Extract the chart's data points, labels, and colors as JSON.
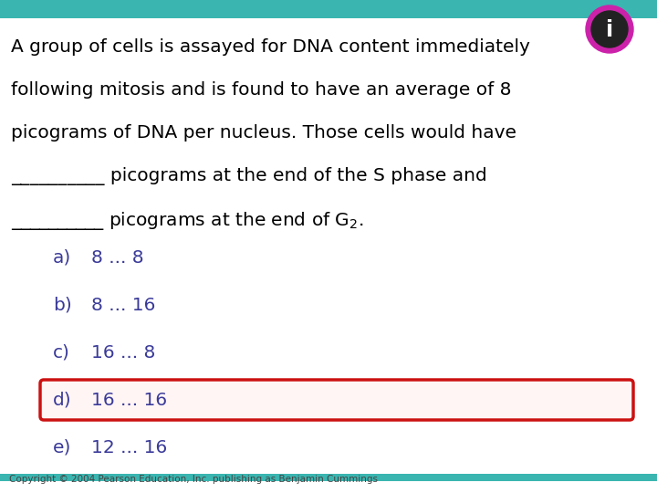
{
  "background_color": "#ffffff",
  "top_bar_color": "#3ab5b0",
  "bottom_bar_color": "#3ab5b0",
  "question_lines": [
    "A group of cells is assayed for DNA content immediately",
    "following mitosis and is found to have an average of 8",
    "picograms of DNA per nucleus. Those cells would have",
    "__________ picograms at the end of the S phase and",
    "__________ picograms at the end of G"
  ],
  "q_line5_sub": "2",
  "q_line5_end": ".",
  "options": [
    {
      "label": "a)",
      "text": "8 ... 8",
      "highlighted": false
    },
    {
      "label": "b)",
      "text": "8 ... 16",
      "highlighted": false
    },
    {
      "label": "c)",
      "text": "16 ... 8",
      "highlighted": false
    },
    {
      "label": "d)",
      "text": "16 ... 16",
      "highlighted": true
    },
    {
      "label": "e)",
      "text": "12 ... 16",
      "highlighted": false
    }
  ],
  "text_color": "#000000",
  "option_color": "#3a3a99",
  "highlight_box_color": "#cc1111",
  "highlight_fill_color": "#fff5f5",
  "copyright_text": "Copyright © 2004 Pearson Education, Inc. publishing as Benjamin Cummings",
  "font_size_question": 14.5,
  "font_size_option": 14.5,
  "font_size_copyright": 7.5,
  "icon_outer_color": "#222222",
  "icon_magenta_color": "#cc22aa",
  "icon_inner_color": "#ffffff"
}
